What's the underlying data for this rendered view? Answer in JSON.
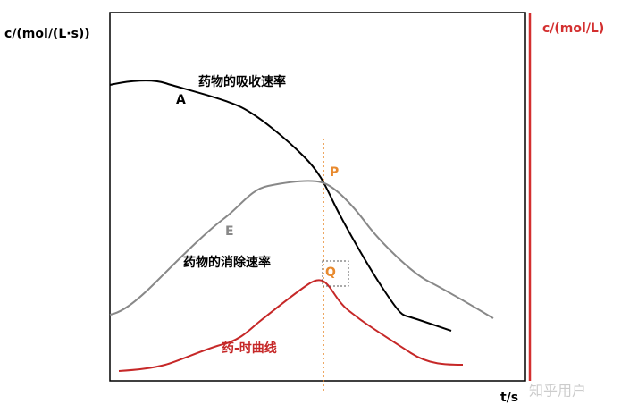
{
  "axes": {
    "y_left_label": "c/(mol/(L·s))",
    "y_right_label": "c/(mol/L)",
    "x_label": "t/s"
  },
  "curves": {
    "absorption_label": "药物的吸收速率",
    "absorption_point": "A",
    "elimination_label": "药物的消除速率",
    "elimination_point": "E",
    "concentration_label": "药-时曲线"
  },
  "points": {
    "intersection": "P",
    "peak": "Q"
  },
  "watermark": "知乎用户"
}
